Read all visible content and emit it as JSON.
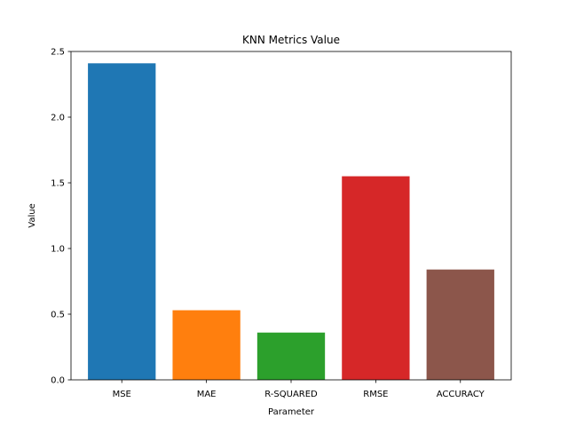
{
  "chart_data": {
    "type": "bar",
    "title": "KNN Metrics Value",
    "xlabel": "Parameter",
    "ylabel": "Value",
    "categories": [
      "MSE",
      "MAE",
      "R-SQUARED",
      "RMSE",
      "ACCURACY"
    ],
    "values": [
      2.41,
      0.53,
      0.36,
      1.55,
      0.84
    ],
    "colors": [
      "#1f77b4",
      "#ff7f0e",
      "#2ca02c",
      "#d62728",
      "#8c564b"
    ],
    "ylim": [
      0,
      2.5
    ],
    "yticks": [
      0.0,
      0.5,
      1.0,
      1.5,
      2.0,
      2.5
    ],
    "ytick_labels": [
      "0.0",
      "0.5",
      "1.0",
      "1.5",
      "2.0",
      "2.5"
    ],
    "grid": false,
    "legend": "none"
  }
}
